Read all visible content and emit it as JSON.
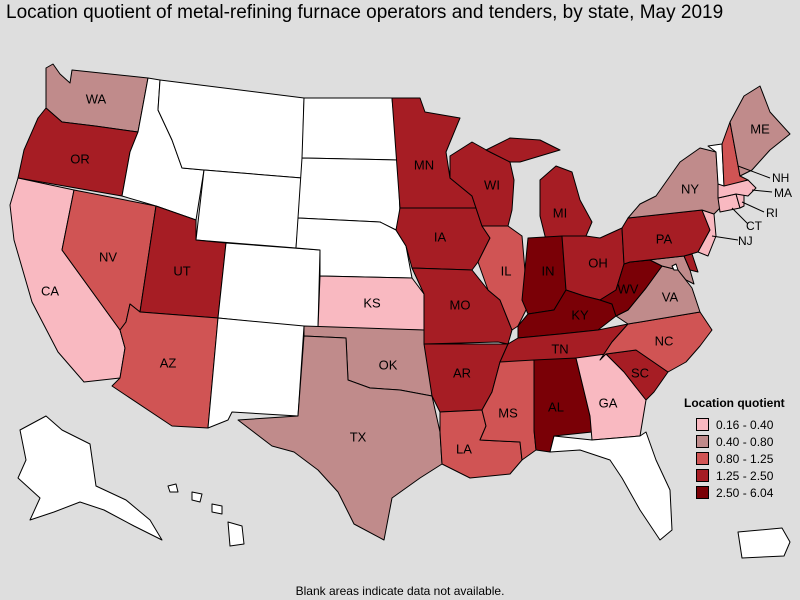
{
  "title": "Location quotient of metal-refining furnace operators and tenders, by state, May 2019",
  "legend": {
    "title": "Location quotient",
    "items": [
      {
        "label": "0.16 - 0.40",
        "color": "#f9b9c1"
      },
      {
        "label": "0.40 - 0.80",
        "color": "#c08b8b"
      },
      {
        "label": "0.80 - 1.25",
        "color": "#d05454"
      },
      {
        "label": "1.25 - 2.50",
        "color": "#a61d24"
      },
      {
        "label": "2.50 - 6.04",
        "color": "#7a0006"
      }
    ]
  },
  "nodata_color": "#ffffff",
  "footnote": "Blank areas indicate data not available.",
  "states": {
    "WA": {
      "label": "WA",
      "class": 1
    },
    "OR": {
      "label": "OR",
      "class": 3
    },
    "CA": {
      "label": "CA",
      "class": 0
    },
    "NV": {
      "label": "NV",
      "class": 2
    },
    "ID": {
      "label": "",
      "class": -1
    },
    "MT": {
      "label": "",
      "class": -1
    },
    "WY": {
      "label": "",
      "class": -1
    },
    "UT": {
      "label": "UT",
      "class": 3
    },
    "AZ": {
      "label": "AZ",
      "class": 2
    },
    "CO": {
      "label": "",
      "class": -1
    },
    "NM": {
      "label": "",
      "class": -1
    },
    "ND": {
      "label": "",
      "class": -1
    },
    "SD": {
      "label": "",
      "class": -1
    },
    "NE": {
      "label": "",
      "class": -1
    },
    "KS": {
      "label": "KS",
      "class": 0
    },
    "OK": {
      "label": "OK",
      "class": 1
    },
    "TX": {
      "label": "TX",
      "class": 1
    },
    "MN": {
      "label": "MN",
      "class": 3
    },
    "IA": {
      "label": "IA",
      "class": 3
    },
    "MO": {
      "label": "MO",
      "class": 3
    },
    "AR": {
      "label": "AR",
      "class": 3
    },
    "LA": {
      "label": "LA",
      "class": 2
    },
    "WI": {
      "label": "WI",
      "class": 3
    },
    "IL": {
      "label": "IL",
      "class": 2
    },
    "MI": {
      "label": "MI",
      "class": 3
    },
    "IN": {
      "label": "IN",
      "class": 4
    },
    "OH": {
      "label": "OH",
      "class": 3
    },
    "KY": {
      "label": "KY",
      "class": 4
    },
    "TN": {
      "label": "TN",
      "class": 3
    },
    "MS": {
      "label": "MS",
      "class": 2
    },
    "AL": {
      "label": "AL",
      "class": 4
    },
    "GA": {
      "label": "GA",
      "class": 0
    },
    "FL": {
      "label": "",
      "class": -1
    },
    "SC": {
      "label": "SC",
      "class": 3
    },
    "NC": {
      "label": "NC",
      "class": 2
    },
    "VA": {
      "label": "VA",
      "class": 1
    },
    "WV": {
      "label": "WV",
      "class": 4
    },
    "PA": {
      "label": "PA",
      "class": 3
    },
    "NY": {
      "label": "NY",
      "class": 1
    },
    "VT": {
      "label": "",
      "class": -1
    },
    "NH": {
      "label": "NH",
      "class": 2
    },
    "ME": {
      "label": "ME",
      "class": 1
    },
    "MA": {
      "label": "MA",
      "class": 0
    },
    "RI": {
      "label": "RI",
      "class": 0
    },
    "CT": {
      "label": "CT",
      "class": 0
    },
    "NJ": {
      "label": "NJ",
      "class": 0
    },
    "DE": {
      "label": "",
      "class": 3
    },
    "MD": {
      "label": "",
      "class": 1
    },
    "DC": {
      "label": "",
      "class": -1
    },
    "AK": {
      "label": "",
      "class": -1
    },
    "HI": {
      "label": "",
      "class": -1
    },
    "PR": {
      "label": "",
      "class": -1
    }
  }
}
